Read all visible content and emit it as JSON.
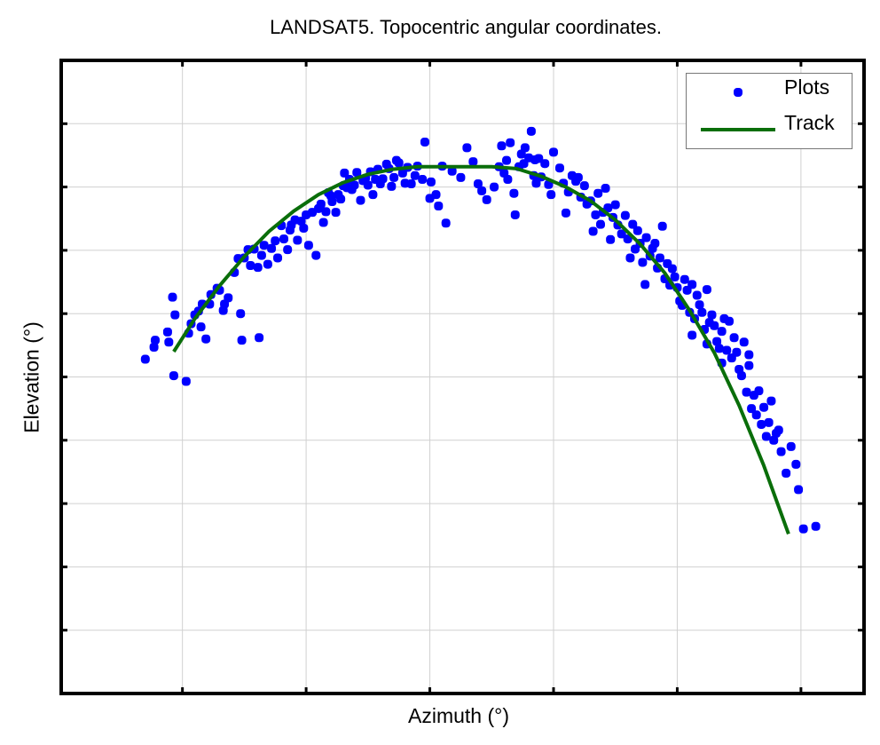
{
  "chart_data": {
    "type": "scatter",
    "title": "LANDSAT5. Topocentric angular coordinates.",
    "xlabel": "Azimuth (°)",
    "ylabel": "Elevation (°)",
    "xlim": [
      -0.98,
      5.51
    ],
    "ylim": [
      0,
      10
    ],
    "xticks": [
      0,
      1,
      2,
      3,
      4,
      5
    ],
    "yticks": [
      1,
      2,
      3,
      4,
      5,
      6,
      7,
      8,
      9
    ],
    "tick_labels_visible": false,
    "grid": true,
    "legend": {
      "position": "upper right",
      "entries": [
        "Plots",
        "Track"
      ]
    },
    "colors": {
      "plots": "#0000ff",
      "track": "#0a6e0a",
      "grid": "#d0d0d0",
      "axes": "#000000"
    },
    "series": [
      {
        "name": "Plots",
        "kind": "scatter",
        "points": [
          [
            -0.3,
            5.28
          ],
          [
            -0.23,
            5.47
          ],
          [
            -0.22,
            5.58
          ],
          [
            -0.12,
            5.71
          ],
          [
            -0.11,
            5.55
          ],
          [
            -0.08,
            6.26
          ],
          [
            -0.06,
            5.98
          ],
          [
            -0.07,
            5.02
          ],
          [
            0.03,
            4.93
          ],
          [
            0.05,
            5.69
          ],
          [
            0.07,
            5.84
          ],
          [
            0.1,
            5.98
          ],
          [
            0.13,
            6.04
          ],
          [
            0.15,
            5.79
          ],
          [
            0.16,
            6.15
          ],
          [
            0.19,
            5.6
          ],
          [
            0.22,
            6.15
          ],
          [
            0.23,
            6.3
          ],
          [
            0.28,
            6.4
          ],
          [
            0.3,
            6.37
          ],
          [
            0.33,
            6.05
          ],
          [
            0.34,
            6.15
          ],
          [
            0.37,
            6.25
          ],
          [
            0.42,
            6.65
          ],
          [
            0.45,
            6.87
          ],
          [
            0.47,
            6.0
          ],
          [
            0.48,
            5.58
          ],
          [
            0.5,
            6.88
          ],
          [
            0.53,
            7.01
          ],
          [
            0.55,
            6.76
          ],
          [
            0.58,
            7.02
          ],
          [
            0.61,
            6.73
          ],
          [
            0.62,
            5.62
          ],
          [
            0.64,
            6.92
          ],
          [
            0.66,
            7.08
          ],
          [
            0.69,
            6.78
          ],
          [
            0.72,
            7.03
          ],
          [
            0.75,
            7.15
          ],
          [
            0.77,
            6.88
          ],
          [
            0.8,
            7.39
          ],
          [
            0.82,
            7.18
          ],
          [
            0.85,
            7.01
          ],
          [
            0.87,
            7.32
          ],
          [
            0.88,
            7.4
          ],
          [
            0.91,
            7.48
          ],
          [
            0.93,
            7.16
          ],
          [
            0.96,
            7.46
          ],
          [
            0.98,
            7.35
          ],
          [
            1.0,
            7.56
          ],
          [
            1.02,
            7.08
          ],
          [
            1.05,
            7.6
          ],
          [
            1.08,
            6.92
          ],
          [
            1.1,
            7.66
          ],
          [
            1.12,
            7.73
          ],
          [
            1.14,
            7.44
          ],
          [
            1.16,
            7.61
          ],
          [
            1.18,
            7.91
          ],
          [
            1.2,
            7.86
          ],
          [
            1.21,
            7.77
          ],
          [
            1.24,
            7.6
          ],
          [
            1.26,
            7.88
          ],
          [
            1.28,
            7.81
          ],
          [
            1.3,
            8.02
          ],
          [
            1.31,
            8.22
          ],
          [
            1.33,
            7.99
          ],
          [
            1.35,
            8.12
          ],
          [
            1.37,
            7.96
          ],
          [
            1.39,
            8.03
          ],
          [
            1.41,
            8.23
          ],
          [
            1.44,
            7.79
          ],
          [
            1.46,
            8.1
          ],
          [
            1.48,
            8.14
          ],
          [
            1.5,
            8.03
          ],
          [
            1.52,
            8.24
          ],
          [
            1.54,
            7.88
          ],
          [
            1.56,
            8.12
          ],
          [
            1.58,
            8.28
          ],
          [
            1.6,
            8.05
          ],
          [
            1.62,
            8.13
          ],
          [
            1.65,
            8.36
          ],
          [
            1.67,
            8.29
          ],
          [
            1.69,
            8.01
          ],
          [
            1.71,
            8.15
          ],
          [
            1.73,
            8.42
          ],
          [
            1.75,
            8.38
          ],
          [
            1.78,
            8.22
          ],
          [
            1.8,
            8.06
          ],
          [
            1.82,
            8.31
          ],
          [
            1.85,
            8.05
          ],
          [
            1.88,
            8.18
          ],
          [
            1.9,
            8.33
          ],
          [
            1.94,
            8.12
          ],
          [
            1.96,
            8.71
          ],
          [
            2.0,
            7.82
          ],
          [
            2.01,
            8.08
          ],
          [
            2.05,
            7.88
          ],
          [
            2.07,
            7.7
          ],
          [
            2.1,
            8.33
          ],
          [
            2.13,
            7.43
          ],
          [
            2.18,
            8.25
          ],
          [
            2.25,
            8.15
          ],
          [
            2.3,
            8.62
          ],
          [
            2.35,
            8.4
          ],
          [
            2.39,
            8.05
          ],
          [
            2.42,
            7.94
          ],
          [
            2.46,
            7.8
          ],
          [
            2.52,
            8.0
          ],
          [
            2.56,
            8.32
          ],
          [
            2.58,
            8.65
          ],
          [
            2.6,
            8.22
          ],
          [
            2.62,
            8.42
          ],
          [
            2.63,
            8.12
          ],
          [
            2.65,
            8.7
          ],
          [
            2.68,
            7.9
          ],
          [
            2.69,
            7.56
          ],
          [
            2.72,
            8.32
          ],
          [
            2.74,
            8.52
          ],
          [
            2.76,
            8.37
          ],
          [
            2.77,
            8.62
          ],
          [
            2.8,
            8.46
          ],
          [
            2.82,
            8.88
          ],
          [
            2.84,
            8.18
          ],
          [
            2.85,
            8.43
          ],
          [
            2.86,
            8.06
          ],
          [
            2.88,
            8.45
          ],
          [
            2.9,
            8.16
          ],
          [
            2.93,
            8.37
          ],
          [
            2.96,
            8.04
          ],
          [
            2.98,
            7.88
          ],
          [
            3.0,
            8.55
          ],
          [
            3.05,
            8.3
          ],
          [
            3.08,
            8.06
          ],
          [
            3.1,
            7.59
          ],
          [
            3.12,
            7.92
          ],
          [
            3.15,
            8.18
          ],
          [
            3.18,
            8.09
          ],
          [
            3.2,
            8.15
          ],
          [
            3.22,
            7.84
          ],
          [
            3.25,
            8.02
          ],
          [
            3.27,
            7.73
          ],
          [
            3.3,
            7.78
          ],
          [
            3.32,
            7.3
          ],
          [
            3.34,
            7.56
          ],
          [
            3.36,
            7.9
          ],
          [
            3.38,
            7.41
          ],
          [
            3.4,
            7.6
          ],
          [
            3.42,
            7.98
          ],
          [
            3.44,
            7.67
          ],
          [
            3.46,
            7.17
          ],
          [
            3.48,
            7.52
          ],
          [
            3.5,
            7.72
          ],
          [
            3.52,
            7.4
          ],
          [
            3.55,
            7.26
          ],
          [
            3.58,
            7.55
          ],
          [
            3.6,
            7.18
          ],
          [
            3.62,
            6.88
          ],
          [
            3.64,
            7.41
          ],
          [
            3.66,
            7.02
          ],
          [
            3.68,
            7.31
          ],
          [
            3.7,
            7.11
          ],
          [
            3.72,
            6.81
          ],
          [
            3.74,
            6.46
          ],
          [
            3.75,
            7.2
          ],
          [
            3.78,
            6.91
          ],
          [
            3.8,
            7.03
          ],
          [
            3.82,
            7.11
          ],
          [
            3.84,
            6.72
          ],
          [
            3.86,
            6.88
          ],
          [
            3.88,
            7.38
          ],
          [
            3.9,
            6.55
          ],
          [
            3.92,
            6.79
          ],
          [
            3.94,
            6.45
          ],
          [
            3.96,
            6.71
          ],
          [
            3.98,
            6.58
          ],
          [
            4.0,
            6.41
          ],
          [
            4.02,
            6.2
          ],
          [
            4.04,
            6.13
          ],
          [
            4.06,
            6.54
          ],
          [
            4.08,
            6.37
          ],
          [
            4.1,
            6.02
          ],
          [
            4.12,
            6.46
          ],
          [
            4.14,
            5.92
          ],
          [
            4.16,
            6.29
          ],
          [
            4.18,
            6.14
          ],
          [
            4.2,
            6.02
          ],
          [
            4.22,
            5.75
          ],
          [
            4.24,
            6.38
          ],
          [
            4.26,
            5.86
          ],
          [
            4.28,
            5.98
          ],
          [
            4.3,
            5.81
          ],
          [
            4.32,
            5.56
          ],
          [
            4.34,
            5.45
          ],
          [
            4.36,
            5.72
          ],
          [
            4.38,
            5.92
          ],
          [
            4.4,
            5.42
          ],
          [
            4.42,
            5.88
          ],
          [
            4.44,
            5.3
          ],
          [
            4.46,
            5.62
          ],
          [
            4.48,
            5.39
          ],
          [
            4.5,
            5.12
          ],
          [
            4.52,
            5.02
          ],
          [
            4.54,
            5.55
          ],
          [
            4.56,
            4.76
          ],
          [
            4.58,
            5.18
          ],
          [
            4.6,
            4.5
          ],
          [
            4.62,
            4.71
          ],
          [
            4.64,
            4.4
          ],
          [
            4.66,
            4.78
          ],
          [
            4.68,
            4.25
          ],
          [
            4.7,
            4.52
          ],
          [
            4.72,
            4.06
          ],
          [
            4.74,
            4.28
          ],
          [
            4.76,
            4.62
          ],
          [
            4.78,
            4.0
          ],
          [
            4.8,
            4.11
          ],
          [
            4.84,
            3.82
          ],
          [
            4.88,
            3.48
          ],
          [
            4.92,
            3.9
          ],
          [
            4.96,
            3.62
          ],
          [
            5.02,
            2.6
          ],
          [
            5.12,
            2.64
          ],
          [
            4.98,
            3.22
          ],
          [
            4.82,
            4.16
          ],
          [
            4.58,
            5.35
          ],
          [
            4.36,
            5.22
          ],
          [
            4.24,
            5.52
          ],
          [
            4.12,
            5.66
          ]
        ]
      },
      {
        "name": "Track",
        "kind": "line",
        "x": [
          -0.07,
          0.1,
          0.3,
          0.5,
          0.7,
          0.9,
          1.1,
          1.3,
          1.5,
          1.7,
          1.9,
          2.1,
          2.3,
          2.5,
          2.7,
          2.9,
          3.1,
          3.3,
          3.5,
          3.7,
          3.9,
          4.1,
          4.3,
          4.5,
          4.7,
          4.9,
          4.97
        ],
        "y": [
          5.4,
          5.92,
          6.44,
          6.9,
          7.3,
          7.62,
          7.88,
          8.07,
          8.2,
          8.28,
          8.32,
          8.32,
          8.32,
          8.32,
          8.29,
          8.17,
          8.0,
          7.78,
          7.48,
          7.1,
          6.64,
          6.05,
          5.38,
          4.55,
          3.6,
          2.52,
          2.8
        ]
      }
    ]
  },
  "legend": {
    "plots_label": "Plots",
    "track_label": "Track"
  }
}
